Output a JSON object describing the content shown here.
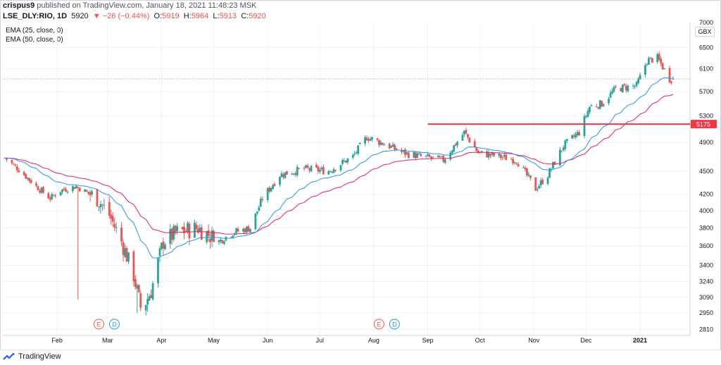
{
  "header": {
    "publisher": "crispus9",
    "published_text": " published on TradingView.com, January 18, 2021 11:48:23 MSK",
    "symbol": "LSE_DLY:RIO, 1D",
    "last": "5920",
    "change": "▼ −26 (−0.44%)",
    "o_label": "O:",
    "o": "5919",
    "h_label": "H:",
    "h": "5964",
    "l_label": "L:",
    "l": "5913",
    "c_label": "C:",
    "c": "5920"
  },
  "indicators": [
    "EMA (25, close, 0)",
    "EMA (50, close, 0)"
  ],
  "currency": "GBX",
  "footer": {
    "brand": "TradingView"
  },
  "colors": {
    "up": "#26a69a",
    "down": "#ef5350",
    "ema25": "#2196f3",
    "ema50": "#e91e63",
    "hline": "#f23645",
    "grid": "#f0f3fa"
  },
  "chart_data": {
    "type": "candlestick",
    "title": "",
    "y_scale": "log",
    "ylim": [
      2750,
      7000
    ],
    "y_ticks": [
      7000,
      6500,
      6100,
      5700,
      5300,
      4900,
      4500,
      4200,
      4000,
      3800,
      3600,
      3400,
      3240,
      3090,
      2950,
      2810
    ],
    "x_labels": [
      "Feb",
      "Mar",
      "Apr",
      "May",
      "Jun",
      "Jul",
      "Aug",
      "Sep",
      "Oct",
      "Nov",
      "Dec",
      "2021"
    ],
    "x_label_dates": [
      "2020-02-01",
      "2020-03-01",
      "2020-04-01",
      "2020-05-01",
      "2020-06-01",
      "2020-07-01",
      "2020-08-01",
      "2020-09-01",
      "2020-10-01",
      "2020-11-01",
      "2020-12-01",
      "2021-01-01"
    ],
    "date_range": [
      "2020-01-02",
      "2021-01-20"
    ],
    "horizontal_line": {
      "value": 5175,
      "label": "5175",
      "start_date": "2020-09-01"
    },
    "last_price_line": 5920,
    "event_markers": [
      {
        "date": "2020-02-25",
        "labels": [
          "E",
          "D"
        ]
      },
      {
        "date": "2020-08-04",
        "labels": [
          "E",
          "D"
        ]
      }
    ],
    "legend": [
      "EMA (25, close, 0)",
      "EMA (50, close, 0)"
    ],
    "anchors": [
      [
        "2020-01-02",
        4680
      ],
      [
        "2020-01-10",
        4520
      ],
      [
        "2020-01-20",
        4300
      ],
      [
        "2020-01-28",
        4150
      ],
      [
        "2020-02-03",
        4250
      ],
      [
        "2020-02-12",
        4300
      ],
      [
        "2020-02-24",
        4150
      ],
      [
        "2020-03-02",
        3950
      ],
      [
        "2020-03-09",
        3650
      ],
      [
        "2020-03-16",
        3300
      ],
      [
        "2020-03-20",
        3000
      ],
      [
        "2020-03-23",
        3050
      ],
      [
        "2020-03-26",
        3150
      ],
      [
        "2020-04-02",
        3650
      ],
      [
        "2020-04-10",
        3750
      ],
      [
        "2020-04-22",
        3800
      ],
      [
        "2020-05-04",
        3650
      ],
      [
        "2020-05-12",
        3750
      ],
      [
        "2020-05-22",
        3800
      ],
      [
        "2020-05-29",
        4150
      ],
      [
        "2020-06-08",
        4450
      ],
      [
        "2020-06-22",
        4530
      ],
      [
        "2020-07-06",
        4500
      ],
      [
        "2020-07-20",
        4700
      ],
      [
        "2020-07-28",
        4980
      ],
      [
        "2020-08-07",
        4880
      ],
      [
        "2020-08-18",
        4750
      ],
      [
        "2020-08-28",
        4700
      ],
      [
        "2020-09-10",
        4650
      ],
      [
        "2020-09-22",
        5050
      ],
      [
        "2020-09-30",
        4750
      ],
      [
        "2020-10-12",
        4700
      ],
      [
        "2020-10-22",
        4650
      ],
      [
        "2020-11-02",
        4270
      ],
      [
        "2020-11-09",
        4450
      ],
      [
        "2020-11-18",
        4850
      ],
      [
        "2020-11-27",
        5050
      ],
      [
        "2020-12-03",
        5450
      ],
      [
        "2020-12-10",
        5500
      ],
      [
        "2020-12-18",
        5750
      ],
      [
        "2020-12-30",
        5800
      ],
      [
        "2021-01-05",
        6250
      ],
      [
        "2021-01-11",
        6300
      ],
      [
        "2021-01-18",
        5920
      ]
    ],
    "spikes": [
      {
        "date": "2020-02-13",
        "low": 3070
      },
      {
        "date": "2020-03-18",
        "low": 2950
      },
      {
        "date": "2020-03-24",
        "low": 2960
      }
    ]
  }
}
